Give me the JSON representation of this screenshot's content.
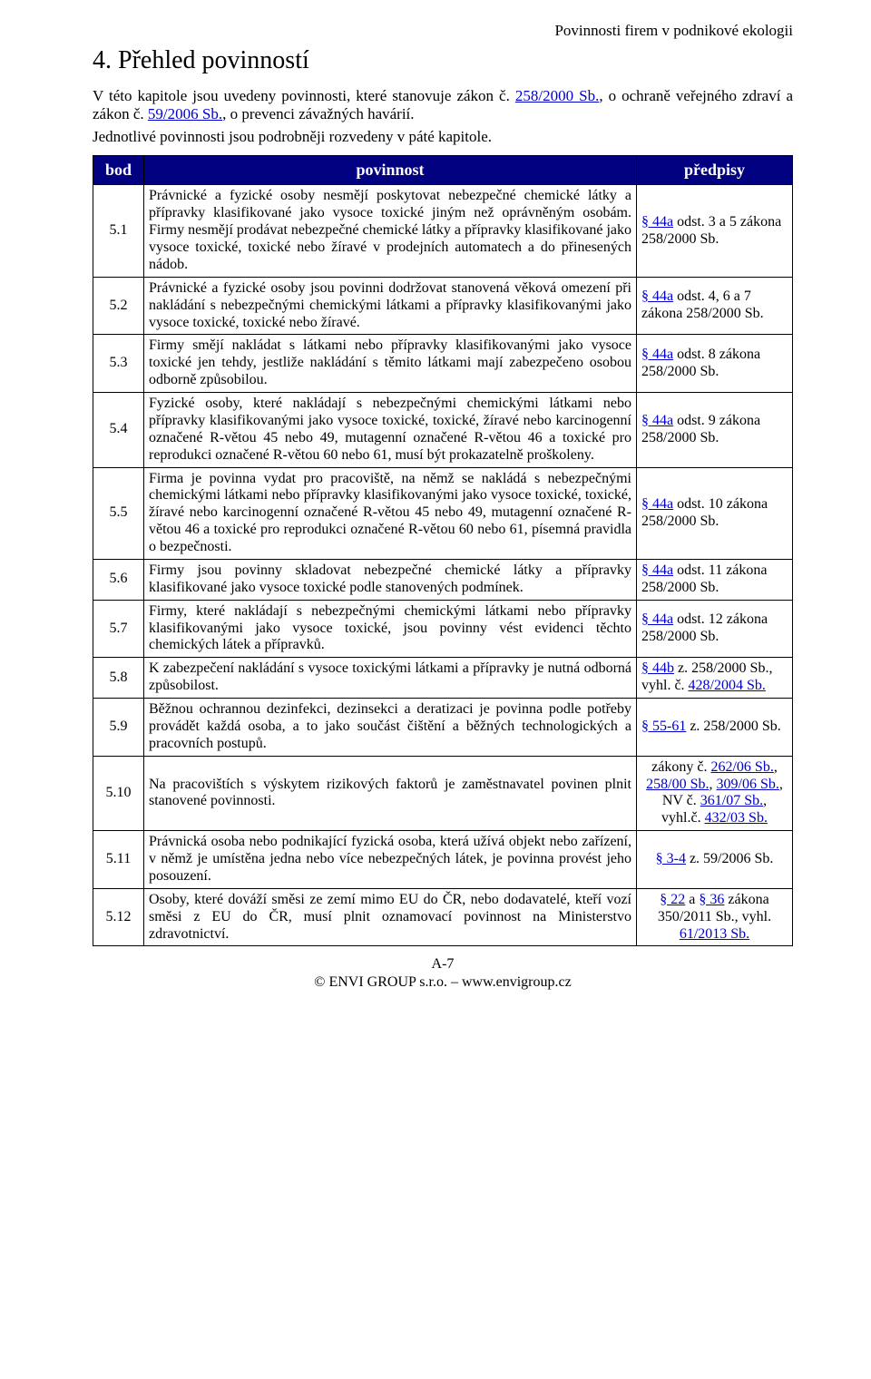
{
  "running_head": "Povinnosti firem v podnikové ekologii",
  "heading": "4. Přehled povinností",
  "intro": {
    "p1_a": "V této kapitole jsou uvedeny povinnosti, které stanovuje zákon č. ",
    "p1_link1": "258/2000 Sb.",
    "p1_b": ", o ochraně veřejného zdraví a zákon č. ",
    "p1_link2": "59/2006 Sb.",
    "p1_c": ", o prevenci závažných havárií.",
    "p2": "Jednotlivé povinnosti jsou podrobněji rozvedeny v páté kapitole."
  },
  "table": {
    "head": {
      "bod": "bod",
      "povinnost": "povinnost",
      "predpisy": "předpisy"
    },
    "rows": [
      {
        "bod": "5.1",
        "pov": "Právnické a fyzické osoby nesmějí poskytovat nebezpečné chemické látky a přípravky klasifikované jako vysoce toxické jiným než oprávněným osobám. Firmy nesmějí prodávat nebezpečné chemické látky a přípravky klasifikované jako vysoce toxické, toxické nebo žíravé v prodejních automatech a do přinesených nádob.",
        "pred_link": "§ 44a",
        "pred_rest": " odst. 3 a 5 zákona 258/2000 Sb.",
        "center": false
      },
      {
        "bod": "5.2",
        "pov": "Právnické a fyzické osoby jsou povinni dodržovat stanovená věková omezení při nakládání s nebezpečnými chemickými látkami a přípravky klasifikovanými jako vysoce toxické, toxické nebo žíravé.",
        "pred_link": "§ 44a",
        "pred_rest": " odst. 4, 6 a 7 zákona 258/2000 Sb.",
        "center": false
      },
      {
        "bod": "5.3",
        "pov": "Firmy smějí nakládat s látkami nebo přípravky klasifikovanými jako vysoce toxické jen tehdy, jestliže nakládání s těmito látkami mají zabezpečeno osobou odborně způsobilou.",
        "pred_link": "§ 44a",
        "pred_rest": " odst. 8 zákona 258/2000 Sb.",
        "center": false
      },
      {
        "bod": "5.4",
        "pov": "Fyzické osoby, které nakládají s nebezpečnými chemickými látkami nebo přípravky klasifikovanými jako vysoce toxické, toxické, žíravé nebo karcinogenní označené R-větou 45 nebo 49, mutagenní označené R-větou 46 a toxické pro reprodukci označené R-větou 60 nebo 61, musí být prokazatelně proškoleny.",
        "pred_link": "§ 44a",
        "pred_rest": " odst. 9 zákona 258/2000 Sb.",
        "center": false
      },
      {
        "bod": "5.5",
        "pov": "Firma je povinna vydat pro pracoviště, na němž se nakládá s nebezpečnými chemickými látkami nebo přípravky klasifikovanými jako vysoce toxické, toxické, žíravé nebo karcinogenní označené R-větou 45 nebo 49, mutagenní označené R-větou 46 a toxické pro reprodukci označené R-větou 60 nebo 61, písemná pravidla o bezpečnosti.",
        "pred_link": "§ 44a",
        "pred_rest": " odst. 10 zákona 258/2000 Sb.",
        "center": false
      },
      {
        "bod": "5.6",
        "pov": "Firmy jsou povinny skladovat nebezpečné chemické látky a přípravky klasifikované jako vysoce toxické podle stanovených podmínek.",
        "pred_link": "§ 44a",
        "pred_rest": " odst. 11 zákona 258/2000 Sb.",
        "center": false
      },
      {
        "bod": "5.7",
        "pov": "Firmy, které nakládají s nebezpečnými chemickými látkami nebo přípravky klasifikovanými jako vysoce toxické, jsou povinny vést evidenci těchto chemických látek a přípravků.",
        "pred_link": "§ 44a",
        "pred_rest": " odst. 12 zákona 258/2000 Sb.",
        "center": false
      },
      {
        "bod": "5.8",
        "pov": "K zabezpečení nakládání s vysoce toxickými látkami a přípravky je nutná odborná způsobilost.",
        "pred_link": "§ 44b",
        "pred_rest_a": " z. 258/2000 Sb., vyhl. č. ",
        "pred_link2": "428/2004 Sb.",
        "center": false
      },
      {
        "bod": "5.9",
        "pov": "Běžnou ochrannou dezinfekci, dezinsekci a deratizaci je povinna podle potřeby provádět každá osoba, a to jako součást čištění a běžných technologických a pracovních postupů.",
        "pred_link": "§ 55-61",
        "pred_rest": " z. 258/2000 Sb.",
        "center": false
      },
      {
        "bod": "5.10",
        "pov": "Na pracovištích s výskytem rizikových faktorů je zaměstnavatel povinen plnit stanovené povinnosti.",
        "pred_plain_a": "zákony č. ",
        "pred_link": "262/06 Sb.",
        "pred_sep1": ", ",
        "pred_link2": "258/00 Sb.",
        "pred_sep2": ", ",
        "pred_link3": "309/06 Sb.",
        "pred_sep3": ", NV č. ",
        "pred_link4": "361/07 Sb.",
        "pred_sep4": ", vyhl.č. ",
        "pred_link5": "432/03 Sb.",
        "center": true
      },
      {
        "bod": "5.11",
        "pov": "Právnická osoba nebo podnikající fyzická osoba, která užívá objekt nebo zařízení, v němž je umístěna jedna nebo více nebezpečných látek, je povinna provést jeho posouzení.",
        "pred_link": "§ 3-4",
        "pred_rest": " z. 59/2006 Sb.",
        "center": true
      },
      {
        "bod": "5.12",
        "pov": "Osoby, které dováží směsi ze zemí mimo EU do ČR, nebo dodavatelé, kteří vozí směsi z EU do ČR, musí plnit oznamovací povinnost na Ministerstvo zdravotnictví.",
        "pred_link": "§ 22",
        "pred_mid": " a ",
        "pred_link2": "§ 36",
        "pred_rest_a": " zákona 350/2011 Sb., vyhl. ",
        "pred_link3": "61/2013 Sb.",
        "center": true
      }
    ]
  },
  "footer": {
    "page": "A-7",
    "line2": "© ENVI GROUP s.r.o. – www.envigroup.cz"
  }
}
